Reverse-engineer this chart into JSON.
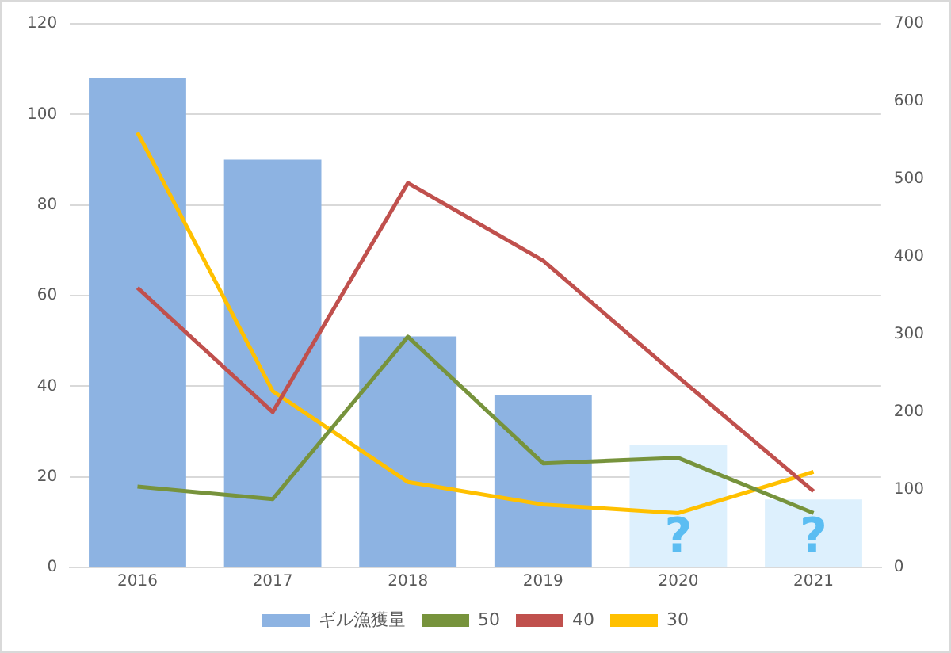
{
  "chart_data": {
    "type": "bar",
    "categories": [
      "2016",
      "2017",
      "2018",
      "2019",
      "2020",
      "2021"
    ],
    "series": [
      {
        "name": "ギル漁獲量",
        "colors": [
          "#8db3e2",
          "#8db3e2",
          "#8db3e2",
          "#8db3e2",
          "#ddf0fd",
          "#ddf0fd"
        ],
        "color": "#8db3e2",
        "values": [
          108,
          90,
          51,
          38,
          27,
          15
        ]
      },
      {
        "name": "50",
        "type": "line",
        "axis": "y2",
        "color": "#77933c",
        "values": [
          104,
          88,
          297,
          134,
          141,
          70
        ]
      },
      {
        "name": "40",
        "type": "line",
        "axis": "y2",
        "color": "#c0504d",
        "values": [
          360,
          200,
          495,
          395,
          245,
          98
        ]
      },
      {
        "name": "30",
        "type": "line",
        "axis": "y2",
        "color": "#ffc000",
        "values": [
          560,
          227,
          110,
          81,
          70,
          123
        ]
      }
    ],
    "ylim": [
      0,
      120
    ],
    "yticks": [
      0,
      20,
      40,
      60,
      80,
      100,
      120
    ],
    "y2lim": [
      0,
      700
    ],
    "y2ticks": [
      0,
      100,
      200,
      300,
      400,
      500,
      600,
      700
    ],
    "annotations": [
      "?",
      "?"
    ],
    "grid": "y",
    "legend": "bottom",
    "marker": "none"
  }
}
